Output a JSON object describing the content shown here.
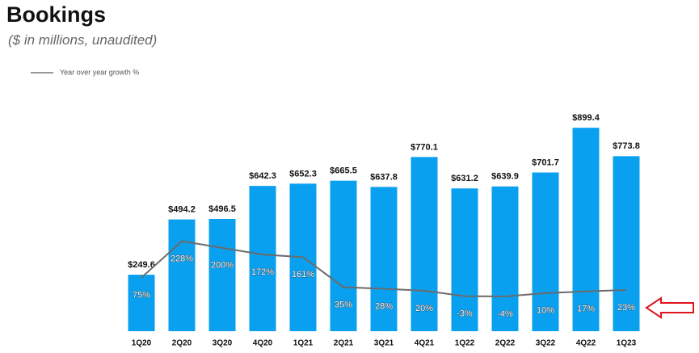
{
  "chart_data": {
    "type": "bar",
    "title": "Bookings",
    "subtitle": "($ in millions, unaudited)",
    "categories": [
      "1Q20",
      "2Q20",
      "3Q20",
      "4Q20",
      "1Q21",
      "2Q21",
      "3Q21",
      "4Q21",
      "1Q22",
      "2Q22",
      "3Q22",
      "4Q22",
      "1Q23"
    ],
    "ylim": [
      0,
      1000
    ],
    "y2lim": [
      -150,
      800
    ],
    "series": [
      {
        "name": "Bookings",
        "type": "bar",
        "color": "#0aa0f0",
        "values": [
          249.6,
          494.2,
          496.5,
          642.3,
          652.3,
          665.5,
          637.8,
          770.1,
          631.2,
          639.9,
          701.7,
          899.4,
          773.8
        ],
        "value_labels": [
          "$249.6",
          "$494.2",
          "$496.5",
          "$642.3",
          "$652.3",
          "$665.5",
          "$637.8",
          "$770.1",
          "$631.2",
          "$639.9",
          "$701.7",
          "$899.4",
          "$773.8"
        ]
      },
      {
        "name": "Year over year growth %",
        "type": "line",
        "axis": "y2",
        "color": "#6b6b6b",
        "values": [
          75,
          228,
          200,
          172,
          161,
          35,
          28,
          20,
          -3,
          -4,
          10,
          17,
          23
        ],
        "value_labels": [
          "75%",
          "228%",
          "200%",
          "172%",
          "161%",
          "35%",
          "28%",
          "20%",
          "-3%",
          "-4%",
          "10%",
          "17%",
          "23%"
        ]
      }
    ]
  }
}
